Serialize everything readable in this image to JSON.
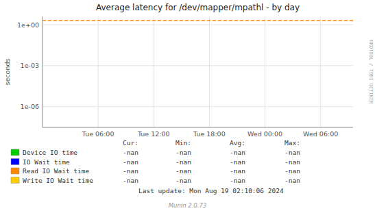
{
  "chart_data": {
    "type": "line",
    "title": "Average latency for /dev/mapper/mpathl - by day",
    "y_label": "seconds",
    "log": "y",
    "grid": true,
    "xlim": [
      0,
      33.5
    ],
    "xticks": [
      {
        "value": 6,
        "label": "Tue 06:00"
      },
      {
        "value": 12,
        "label": "Tue 12:00"
      },
      {
        "value": 18,
        "label": "Tue 18:00"
      },
      {
        "value": 24,
        "label": "Wed 00:00"
      },
      {
        "value": 30,
        "label": "Wed 06:00"
      }
    ],
    "ylim": [
      3e-08,
      4.0
    ],
    "yticks": [
      {
        "value": 1e-06,
        "label": "1e-06"
      },
      {
        "value": 0.001,
        "label": "1e-03"
      },
      {
        "value": 1.0,
        "label": "1e+00"
      }
    ],
    "hlines": [
      {
        "value": 2.0,
        "color": "#ff8800",
        "line_style": "dashed"
      }
    ],
    "table": {
      "headers": [
        "Cur:",
        "Min:",
        "Avg:",
        "Max:"
      ]
    },
    "series": [
      {
        "name": "Device IO time",
        "color": "#00cc00",
        "stats": [
          "-nan",
          "-nan",
          "-nan",
          "-nan"
        ]
      },
      {
        "name": "IO Wait time",
        "color": "#0000ff",
        "stats": [
          "-nan",
          "-nan",
          "-nan",
          "-nan"
        ]
      },
      {
        "name": "Read IO Wait time",
        "color": "#ff8800",
        "stats": [
          "-nan",
          "-nan",
          "-nan",
          "-nan"
        ]
      },
      {
        "name": "Write IO Wait time",
        "color": "#ffcc00",
        "stats": [
          "-nan",
          "-nan",
          "-nan",
          "-nan"
        ]
      }
    ],
    "annotations": [
      "Last update: Mon Aug 19 02:10:06 2024",
      "Munin 2.0.73",
      "RRDTOOL / TOBI OETIKER"
    ]
  }
}
